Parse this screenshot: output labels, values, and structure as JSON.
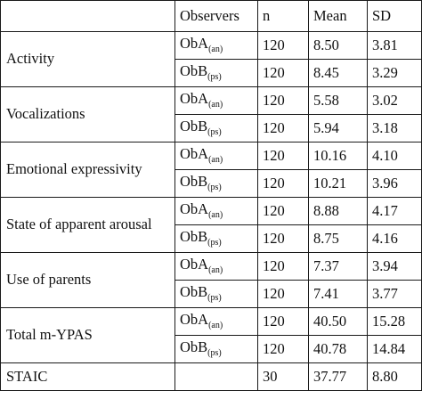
{
  "table": {
    "headers": [
      "",
      "Observers",
      "n",
      "Mean",
      "SD"
    ],
    "groups": [
      {
        "label": "Activity",
        "rows": [
          {
            "observer": "ObA",
            "sub": "(an)",
            "n": "120",
            "mean": "8.50",
            "sd": "3.81"
          },
          {
            "observer": "ObB",
            "sub": "(ps)",
            "n": "120",
            "mean": "8.45",
            "sd": "3.29"
          }
        ]
      },
      {
        "label": "Vocalizations",
        "rows": [
          {
            "observer": "ObA",
            "sub": "(an)",
            "n": "120",
            "mean": "5.58",
            "sd": "3.02"
          },
          {
            "observer": "ObB",
            "sub": "(ps)",
            "n": "120",
            "mean": "5.94",
            "sd": "3.18"
          }
        ]
      },
      {
        "label": "Emotional expressivity",
        "rows": [
          {
            "observer": "ObA",
            "sub": "(an)",
            "n": "120",
            "mean": "10.16",
            "sd": "4.10"
          },
          {
            "observer": "ObB",
            "sub": "(ps)",
            "n": "120",
            "mean": "10.21",
            "sd": "3.96"
          }
        ]
      },
      {
        "label": "State of apparent arousal",
        "rows": [
          {
            "observer": "ObA",
            "sub": "(an)",
            "n": "120",
            "mean": "8.88",
            "sd": "4.17"
          },
          {
            "observer": "ObB",
            "sub": "(ps)",
            "n": "120",
            "mean": "8.75",
            "sd": "4.16"
          }
        ]
      },
      {
        "label": "Use of parents",
        "rows": [
          {
            "observer": "ObA",
            "sub": "(an)",
            "n": "120",
            "mean": "7.37",
            "sd": "3.94"
          },
          {
            "observer": "ObB",
            "sub": "(ps)",
            "n": "120",
            "mean": "7.41",
            "sd": "3.77"
          }
        ]
      },
      {
        "label": "Total m-YPAS",
        "rows": [
          {
            "observer": "ObA",
            "sub": "(an)",
            "n": "120",
            "mean": "40.50",
            "sd": "15.28"
          },
          {
            "observer": "ObB",
            "sub": "(ps)",
            "n": "120",
            "mean": "40.78",
            "sd": "14.84"
          }
        ]
      },
      {
        "label": "STAIC",
        "rows": [
          {
            "observer": "",
            "sub": "",
            "n": "30",
            "mean": "37.77",
            "sd": "8.80"
          }
        ]
      }
    ]
  }
}
